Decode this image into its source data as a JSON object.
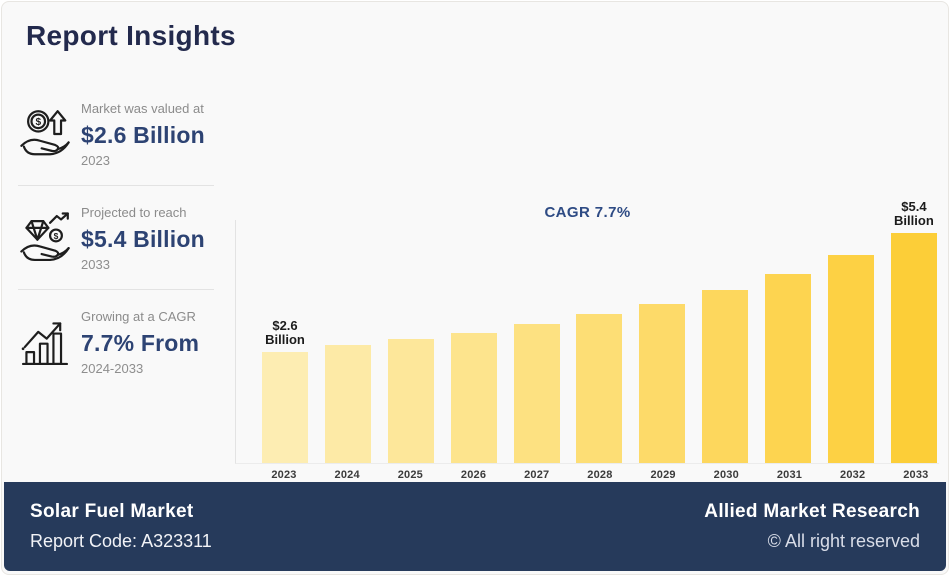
{
  "page": {
    "title": "Report Insights"
  },
  "sidebar": {
    "stats": [
      {
        "icon": "hand-coin-arrow-icon",
        "label": "Market was valued at",
        "value": "$2.6 Billion",
        "period": "2023"
      },
      {
        "icon": "hand-diamond-coin-icon",
        "label": "Projected to reach",
        "value": "$5.4 Billion",
        "period": "2033"
      },
      {
        "icon": "bar-growth-arrow-icon",
        "label": "Growing at a CAGR",
        "value": "7.7% From",
        "period": "2024-2033"
      }
    ]
  },
  "chart_data": {
    "type": "bar",
    "title": "",
    "xlabel": "",
    "ylabel": "",
    "categories": [
      "2023",
      "2024",
      "2025",
      "2026",
      "2027",
      "2028",
      "2029",
      "2030",
      "2031",
      "2032",
      "2033"
    ],
    "values": [
      2.6,
      2.76,
      2.9,
      3.06,
      3.27,
      3.51,
      3.74,
      4.07,
      4.44,
      4.89,
      5.4
    ],
    "unit": "Billion USD",
    "ylim": [
      0,
      5.4
    ],
    "grid": false,
    "legend": "none",
    "annotation": "CAGR 7.7%",
    "bar_value_labels": [
      {
        "index": 0,
        "lines": [
          "$2.6",
          "Billion"
        ]
      },
      {
        "index": 10,
        "lines": [
          "$5.4",
          "Billion"
        ]
      }
    ],
    "bar_colors": [
      "#FDEDB2",
      "#FDEAA6",
      "#FDE79A",
      "#FDE48D",
      "#FDE181",
      "#FDDE75",
      "#FDDA69",
      "#FDD75D",
      "#FDD450",
      "#FDD144",
      "#FCCE38"
    ]
  },
  "footer": {
    "market_name": "Solar Fuel Market",
    "report_code": "Report Code: A323311",
    "company": "Allied Market Research",
    "rights": "© All right reserved"
  },
  "colors": {
    "title_navy": "#232A4D",
    "value_navy": "#2D4373",
    "cagr_blue": "#2E4B84",
    "footer_bg": "#263A5B",
    "bar_light": "#FDEDB2",
    "bar_dark": "#FCCE38",
    "label_gray": "#8B8B8B"
  }
}
